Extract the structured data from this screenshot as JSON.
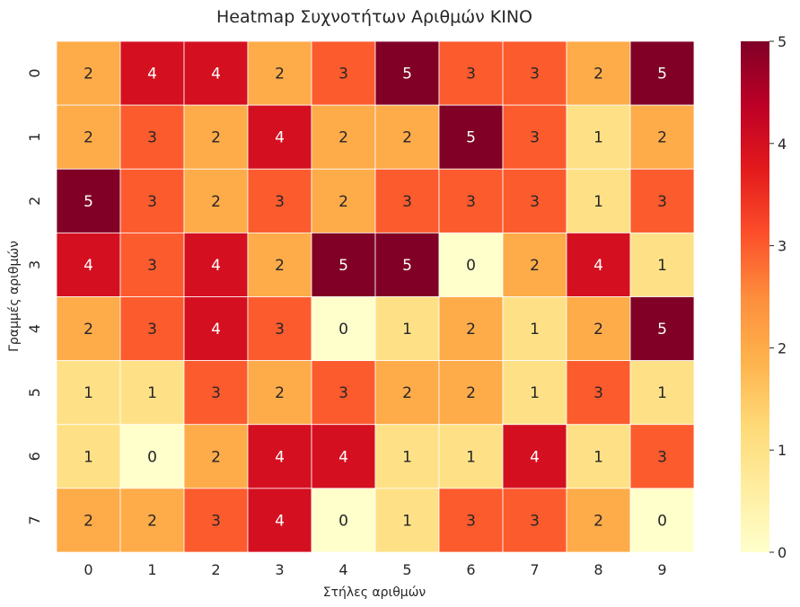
{
  "chart_data": {
    "type": "heatmap",
    "title": "Heatmap Συχνοτήτων Αριθμών KINO",
    "xlabel": "Στήλες αριθμών",
    "ylabel": "Γραμμές αριθμών",
    "x_categories": [
      "0",
      "1",
      "2",
      "3",
      "4",
      "5",
      "6",
      "7",
      "8",
      "9"
    ],
    "y_categories": [
      "0",
      "1",
      "2",
      "3",
      "4",
      "5",
      "6",
      "7"
    ],
    "values": [
      [
        2,
        4,
        4,
        2,
        3,
        5,
        3,
        3,
        2,
        5
      ],
      [
        2,
        3,
        2,
        4,
        2,
        2,
        5,
        3,
        1,
        2
      ],
      [
        5,
        3,
        2,
        3,
        2,
        3,
        3,
        3,
        1,
        3
      ],
      [
        4,
        3,
        4,
        2,
        5,
        5,
        0,
        2,
        4,
        1
      ],
      [
        2,
        3,
        4,
        3,
        0,
        1,
        2,
        1,
        2,
        5
      ],
      [
        1,
        1,
        3,
        2,
        3,
        2,
        2,
        1,
        3,
        1
      ],
      [
        1,
        0,
        2,
        4,
        4,
        1,
        1,
        4,
        1,
        3
      ],
      [
        2,
        2,
        3,
        4,
        0,
        1,
        3,
        3,
        2,
        0
      ]
    ],
    "value_range": [
      0,
      5
    ],
    "colorbar_ticks": [
      "0",
      "1",
      "2",
      "3",
      "4",
      "5"
    ],
    "colormap": "YlOrRd",
    "color_stops": [
      "#ffffcc",
      "#fed976",
      "#fd8d3c",
      "#e31a1c",
      "#800026"
    ],
    "annotations": true,
    "grid": false,
    "legend": "colorbar-right"
  }
}
